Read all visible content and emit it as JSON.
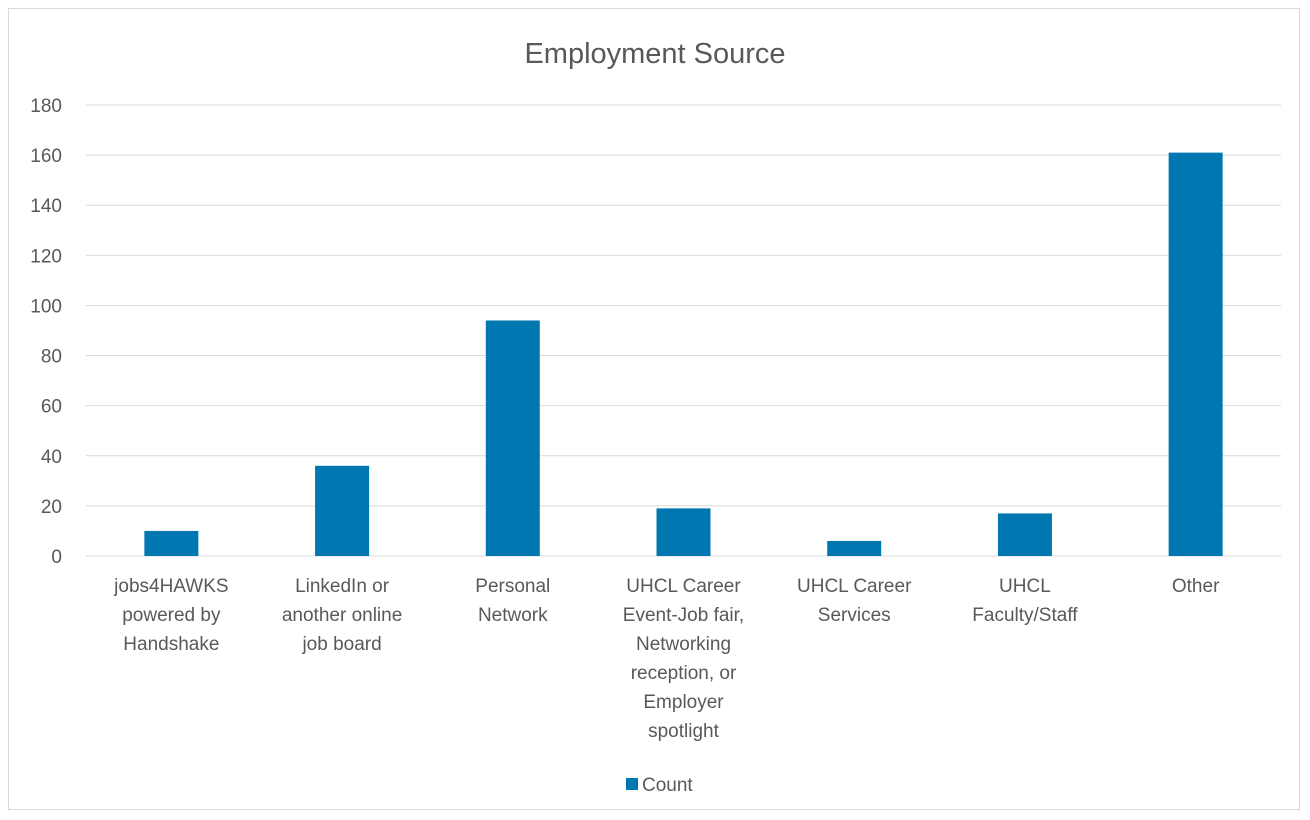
{
  "chart_data": {
    "type": "bar",
    "title": "Employment Source",
    "xlabel": "",
    "ylabel": "",
    "categories": [
      "jobs4HAWKS powered by Handshake",
      "LinkedIn or another online job board",
      "Personal Network",
      "UHCL Career Event-Job fair, Networking reception, or Employer spotlight",
      "UHCL Career Services",
      "UHCL Faculty/Staff",
      "Other"
    ],
    "category_lines": [
      [
        "jobs4HAWKS",
        "powered by",
        "Handshake"
      ],
      [
        "LinkedIn or",
        "another online",
        "job board"
      ],
      [
        "Personal",
        "Network"
      ],
      [
        "UHCL Career",
        "Event-Job fair,",
        "Networking",
        "reception, or",
        "Employer",
        "spotlight"
      ],
      [
        "UHCL Career",
        "Services"
      ],
      [
        "UHCL",
        "Faculty/Staff"
      ],
      [
        "Other"
      ]
    ],
    "series": [
      {
        "name": "Count",
        "values": [
          10,
          36,
          94,
          19,
          6,
          17,
          161
        ],
        "color": "#0077b0"
      }
    ],
    "ylim": [
      0,
      180
    ],
    "yticks": [
      0,
      20,
      40,
      60,
      80,
      100,
      120,
      140,
      160,
      180
    ],
    "grid": true,
    "legend_position": "bottom",
    "colors": {
      "bar": "#0077b0",
      "grid": "#d9d9d9",
      "axis_text": "#595959",
      "title_text": "#595959"
    }
  }
}
